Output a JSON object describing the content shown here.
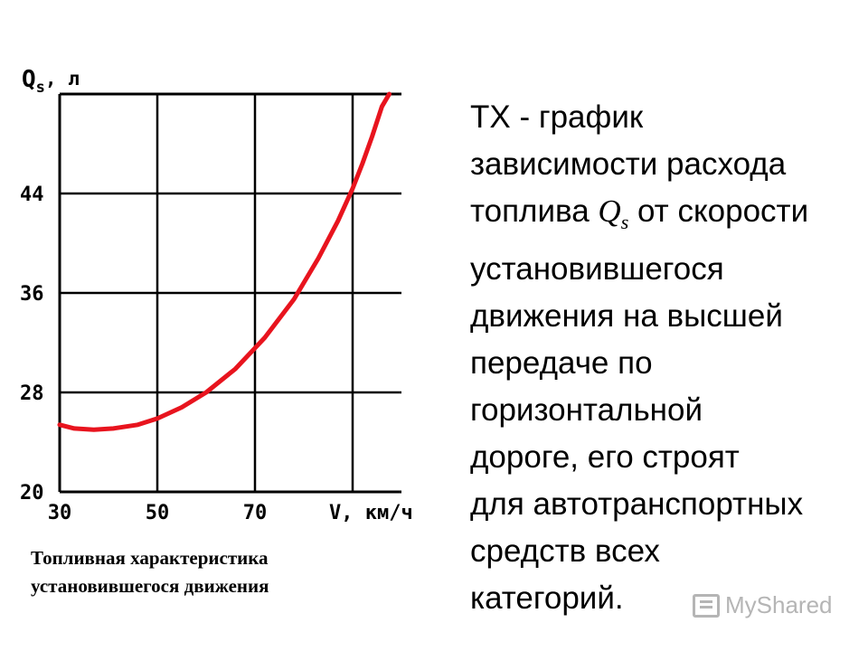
{
  "chart_data": {
    "type": "line",
    "xlabel": "V, км/ч",
    "ylabel": "Q",
    "ylabel_sub": "s",
    "ylabel_unit": ", л",
    "xlim": [
      30,
      100
    ],
    "ylim": [
      20,
      52
    ],
    "x_ticks": [
      30,
      50,
      70,
      90
    ],
    "y_ticks": [
      20,
      28,
      36,
      44,
      52
    ],
    "x_tick_labels": [
      "30",
      "50",
      "70"
    ],
    "y_tick_labels": [
      "20",
      "28",
      "36",
      "44"
    ],
    "grid": true,
    "series": [
      {
        "color": "#e8141e",
        "x": [
          30,
          33,
          37,
          41,
          46,
          50,
          55,
          60,
          66,
          72,
          78,
          83,
          87,
          90,
          92,
          94,
          96,
          97.5
        ],
        "y": [
          25.4,
          25.1,
          25.0,
          25.1,
          25.4,
          25.9,
          26.8,
          28.0,
          29.9,
          32.4,
          35.5,
          38.8,
          41.8,
          44.4,
          46.4,
          48.6,
          51.0,
          53.0
        ]
      }
    ]
  },
  "caption": {
    "line1": "Топливная характеристика",
    "line2": "установившегося движения"
  },
  "description": {
    "line1": "ТХ - график",
    "line2": "зависимости расхода",
    "line3_before": "топлива ",
    "line3_q": "Q",
    "line3_sub": "s",
    "line3_after": " от скорости",
    "line4": "установившегося",
    "line5": "движения на высшей",
    "line6": "передаче по",
    "line7": "горизонтальной",
    "line8": "дороге,  его  строят",
    "line9": "для  автотранспортных",
    "line10": "средств всех",
    "line11": "категорий."
  },
  "watermark": {
    "text": "MyShared",
    "icon": "presentation-icon"
  }
}
